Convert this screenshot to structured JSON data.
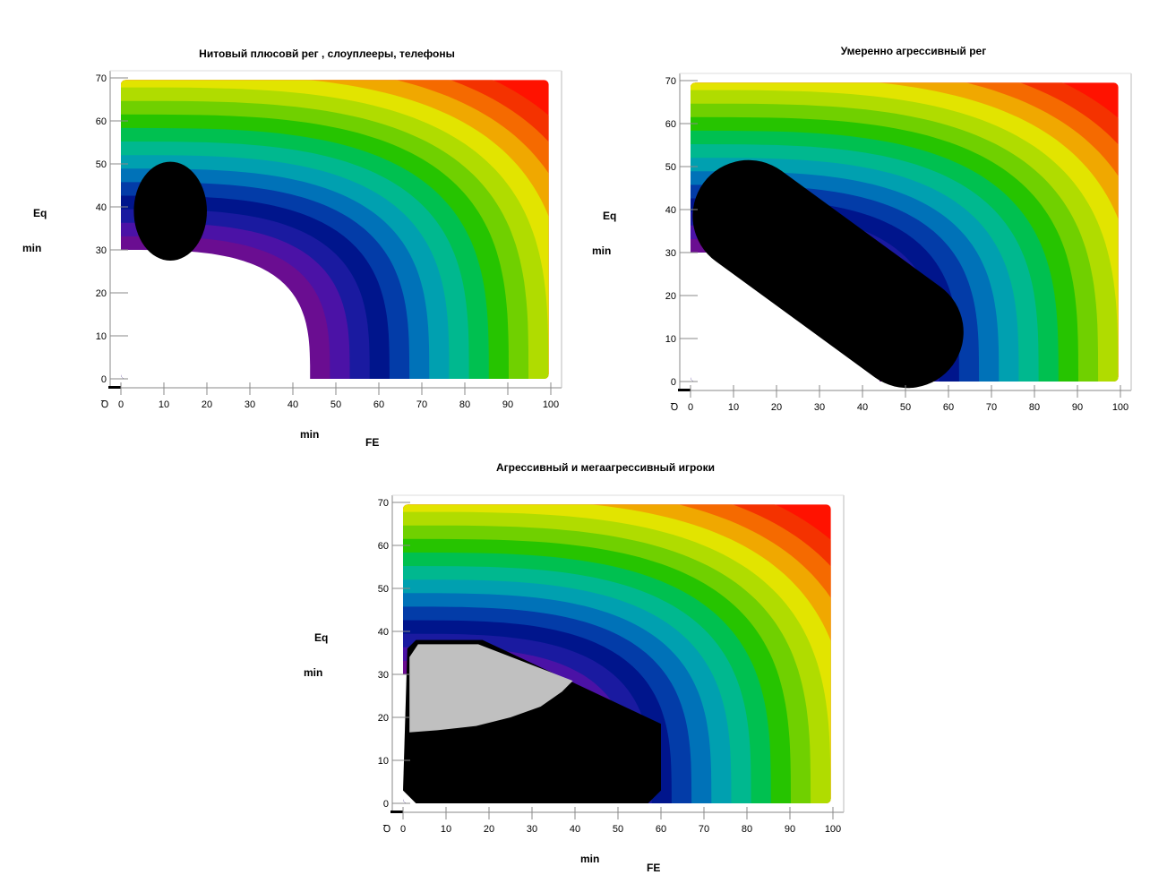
{
  "axis_labels": {
    "y_top": "Eq",
    "y_bottom": "min",
    "x_left": "min",
    "x_right": "FE",
    "origin_glyph": "Ꝺ"
  },
  "chart_data": [
    {
      "type": "heatmap",
      "title": "Нитовый плюсовй рег  , слоуплееры, телефоны",
      "x_ticks": [
        0,
        10,
        20,
        30,
        40,
        50,
        60,
        70,
        80,
        90,
        100
      ],
      "y_ticks": [
        0,
        10,
        20,
        30,
        40,
        50,
        60,
        70
      ],
      "xlim": [
        0,
        100
      ],
      "ylim": [
        0,
        70
      ],
      "x_label": "min      FE",
      "y_label": "Eq min",
      "color_bands": [
        "#ffffff",
        "#6a0d91",
        "#4b12a6",
        "#1a1aa0",
        "#00158c",
        "#033ca8",
        "#0072b8",
        "#00a0b0",
        "#00b88f",
        "#00c050",
        "#26c400",
        "#70d000",
        "#b0dc00",
        "#e2e400",
        "#f0a800",
        "#f56a00",
        "#f43200",
        "#ff1200"
      ],
      "regions": [
        {
          "shape": "ellipse",
          "fill": "#000000",
          "center": [
            11.5,
            39
          ],
          "radii": [
            8.5,
            11.5
          ]
        }
      ]
    },
    {
      "type": "heatmap",
      "title": "Умеренно агрессивный рег",
      "x_ticks": [
        0,
        10,
        20,
        30,
        40,
        50,
        60,
        70,
        80,
        90,
        100
      ],
      "y_ticks": [
        0,
        10,
        20,
        30,
        40,
        50,
        60,
        70
      ],
      "xlim": [
        0,
        100
      ],
      "ylim": [
        0,
        70
      ],
      "x_label": "",
      "y_label": "Eq min",
      "color_bands": [
        "#ffffff",
        "#6a0d91",
        "#4b12a6",
        "#1a1aa0",
        "#00158c",
        "#033ca8",
        "#0072b8",
        "#00a0b0",
        "#00b88f",
        "#00c050",
        "#26c400",
        "#70d000",
        "#b0dc00",
        "#e2e400",
        "#f0a800",
        "#f56a00",
        "#f43200",
        "#ff1200"
      ],
      "regions": [
        {
          "shape": "capsule",
          "fill": "#000000",
          "from": [
            13.5,
            38.5
          ],
          "to": [
            50.5,
            11.5
          ],
          "radius": 13
        }
      ]
    },
    {
      "type": "heatmap",
      "title": "Агрессивный и мегаагрессивный игроки",
      "x_ticks": [
        0,
        10,
        20,
        30,
        40,
        50,
        60,
        70,
        80,
        90,
        100
      ],
      "y_ticks": [
        0,
        10,
        20,
        30,
        40,
        50,
        60,
        70
      ],
      "xlim": [
        0,
        100
      ],
      "ylim": [
        0,
        70
      ],
      "x_label": "min      FE",
      "y_label": "Eq min",
      "color_bands": [
        "#ffffff",
        "#6a0d91",
        "#4b12a6",
        "#1a1aa0",
        "#00158c",
        "#033ca8",
        "#0072b8",
        "#00a0b0",
        "#00b88f",
        "#00c050",
        "#26c400",
        "#70d000",
        "#b0dc00",
        "#e2e400",
        "#f0a800",
        "#f56a00",
        "#f43200",
        "#ff1200"
      ],
      "regions": [
        {
          "shape": "polygon",
          "fill": "#000000",
          "points": [
            [
              1,
              36
            ],
            [
              3,
              38
            ],
            [
              18.5,
              38
            ],
            [
              60,
              18.5
            ],
            [
              60,
              3
            ],
            [
              57,
              0
            ],
            [
              3,
              0
            ],
            [
              0,
              3
            ]
          ]
        },
        {
          "shape": "polygon",
          "fill": "#c0c0c0",
          "points": [
            [
              1.5,
              16.5
            ],
            [
              1.5,
              34
            ],
            [
              3.5,
              37
            ],
            [
              17.5,
              37
            ],
            [
              39.5,
              28.5
            ],
            [
              37,
              26
            ],
            [
              32,
              22.5
            ],
            [
              25,
              20
            ],
            [
              17,
              18
            ],
            [
              8,
              17
            ]
          ]
        }
      ]
    }
  ]
}
